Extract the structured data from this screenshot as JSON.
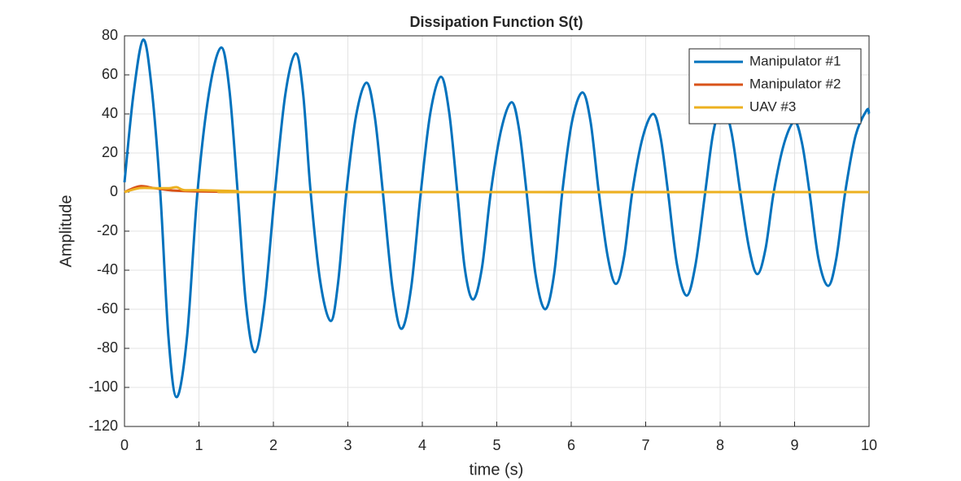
{
  "chart_data": {
    "type": "line",
    "title": "Dissipation Function S(t)",
    "xlabel": "time (s)",
    "ylabel": "Amplitude",
    "xlim": [
      0,
      10
    ],
    "ylim": [
      -120,
      80
    ],
    "xticks": [
      0,
      1,
      2,
      3,
      4,
      5,
      6,
      7,
      8,
      9,
      10
    ],
    "yticks": [
      -120,
      -100,
      -80,
      -60,
      -40,
      -20,
      0,
      20,
      40,
      60,
      80
    ],
    "grid": true,
    "legend": "upper right",
    "series": [
      {
        "name": "Manipulator #1",
        "color": "#0072BD",
        "x": [
          0,
          0.12,
          0.25,
          0.36,
          0.48,
          0.59,
          0.7,
          0.84,
          0.98,
          1.14,
          1.3,
          1.41,
          1.52,
          1.63,
          1.75,
          1.88,
          2.02,
          2.16,
          2.3,
          2.4,
          2.5,
          2.63,
          2.77,
          2.87,
          2.98,
          3.11,
          3.25,
          3.36,
          3.47,
          3.6,
          3.72,
          3.85,
          3.98,
          4.11,
          4.25,
          4.36,
          4.47,
          4.57,
          4.68,
          4.8,
          4.92,
          5.06,
          5.2,
          5.3,
          5.4,
          5.52,
          5.65,
          5.77,
          5.88,
          6.01,
          6.15,
          6.26,
          6.37,
          6.49,
          6.6,
          6.71,
          6.82,
          6.96,
          7.1,
          7.2,
          7.3,
          7.42,
          7.55,
          7.67,
          7.8,
          7.91,
          8.03,
          8.15,
          8.27,
          8.39,
          8.5,
          8.61,
          8.72,
          8.86,
          9.0,
          9.1,
          9.2,
          9.32,
          9.45,
          9.56,
          9.68,
          9.82,
          9.97,
          10
        ],
        "values": [
          5,
          50,
          78,
          55,
          0,
          -74,
          -105,
          -74,
          0,
          52,
          74,
          52,
          0,
          -57,
          -82,
          -57,
          0,
          50,
          71,
          50,
          0,
          -46,
          -66,
          -46,
          0,
          39,
          56,
          39,
          0,
          -49,
          -70,
          -49,
          0,
          41,
          59,
          41,
          0,
          -39,
          -55,
          -39,
          0,
          32,
          46,
          32,
          0,
          -42,
          -60,
          -42,
          0,
          36,
          51,
          36,
          0,
          -33,
          -47,
          -33,
          0,
          28,
          40,
          28,
          0,
          -37,
          -53,
          -37,
          0,
          31,
          44,
          31,
          0,
          -29,
          -42,
          -29,
          0,
          25,
          36,
          25,
          0,
          -34,
          -48,
          -34,
          0,
          29,
          42,
          40
        ]
      },
      {
        "name": "Manipulator #2",
        "color": "#D95319",
        "x": [
          0,
          0.2,
          0.4,
          0.6,
          0.8,
          1,
          1.5,
          2,
          10
        ],
        "values": [
          0,
          3,
          2,
          1,
          0.5,
          0.3,
          0.1,
          0,
          0
        ]
      },
      {
        "name": "UAV #3",
        "color": "#EDB120",
        "x": [
          0,
          0.2,
          0.4,
          0.6,
          0.7,
          0.8,
          1,
          1.5,
          2,
          10
        ],
        "values": [
          0,
          2,
          2,
          2,
          2.5,
          1,
          1,
          0.5,
          0,
          0
        ]
      }
    ]
  }
}
